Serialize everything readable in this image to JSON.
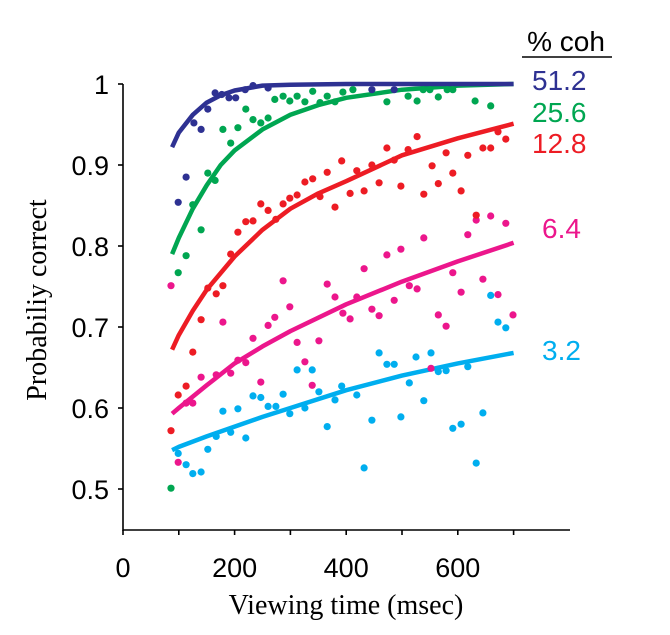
{
  "chart_data": {
    "type": "scatter",
    "title": "",
    "xlabel": "Viewing time (msec)",
    "ylabel": "Probabiliy correct",
    "xlim": [
      0,
      800
    ],
    "ylim": [
      0.45,
      1.0
    ],
    "xticks": [
      0,
      100,
      200,
      300,
      400,
      500,
      600,
      700
    ],
    "xtick_labels": [
      "0",
      "",
      "200",
      "",
      "400",
      "",
      "600",
      ""
    ],
    "yticks": [
      0.5,
      0.6,
      0.7,
      0.8,
      0.9,
      1.0
    ],
    "ytick_labels": [
      "0.5",
      "0.6",
      "0.7",
      "0.8",
      "0.9",
      "1"
    ],
    "grid": false,
    "legend_title": "% coh",
    "legend_placement": "right",
    "series": [
      {
        "name": "51.2",
        "color": "#2e3192",
        "points": [
          [
            99,
            0.854
          ],
          [
            113,
            0.885
          ],
          [
            127,
            0.952
          ],
          [
            140,
            0.944
          ],
          [
            152,
            0.969
          ],
          [
            165,
            0.989
          ],
          [
            177,
            0.987
          ],
          [
            190,
            0.983
          ],
          [
            202,
            0.983
          ],
          [
            219,
            0.993
          ],
          [
            233,
            0.998
          ],
          [
            260,
            0.995
          ],
          [
            446,
            0.993
          ],
          [
            486,
            0.993
          ]
        ],
        "fit": [
          [
            88,
            0.922
          ],
          [
            100,
            0.94
          ],
          [
            125,
            0.962
          ],
          [
            150,
            0.977
          ],
          [
            175,
            0.986
          ],
          [
            200,
            0.992
          ],
          [
            250,
            0.998
          ],
          [
            300,
            0.999
          ],
          [
            400,
            1.0
          ],
          [
            500,
            1.0
          ],
          [
            600,
            1.0
          ],
          [
            700,
            1.0
          ]
        ]
      },
      {
        "name": "25.6",
        "color": "#00a651",
        "points": [
          [
            86,
            0.501
          ],
          [
            99,
            0.767
          ],
          [
            113,
            0.788
          ],
          [
            125,
            0.851
          ],
          [
            140,
            0.82
          ],
          [
            152,
            0.89
          ],
          [
            165,
            0.881
          ],
          [
            179,
            0.944
          ],
          [
            193,
            0.927
          ],
          [
            206,
            0.946
          ],
          [
            220,
            0.969
          ],
          [
            233,
            0.956
          ],
          [
            247,
            0.952
          ],
          [
            260,
            0.958
          ],
          [
            272,
            0.981
          ],
          [
            287,
            0.985
          ],
          [
            299,
            0.979
          ],
          [
            312,
            0.985
          ],
          [
            326,
            0.978
          ],
          [
            340,
            0.991
          ],
          [
            353,
            0.977
          ],
          [
            366,
            0.985
          ],
          [
            380,
            0.978
          ],
          [
            394,
            0.99
          ],
          [
            412,
            0.993
          ],
          [
            473,
            0.978
          ],
          [
            511,
            0.985
          ],
          [
            527,
            0.979
          ],
          [
            538,
            0.993
          ],
          [
            550,
            0.993
          ],
          [
            565,
            0.984
          ],
          [
            581,
            0.993
          ],
          [
            591,
            0.993
          ],
          [
            631,
            0.979
          ],
          [
            659,
            0.973
          ]
        ],
        "fit": [
          [
            88,
            0.79
          ],
          [
            100,
            0.81
          ],
          [
            125,
            0.846
          ],
          [
            150,
            0.875
          ],
          [
            175,
            0.9
          ],
          [
            200,
            0.918
          ],
          [
            250,
            0.944
          ],
          [
            300,
            0.962
          ],
          [
            350,
            0.974
          ],
          [
            400,
            0.983
          ],
          [
            500,
            0.993
          ],
          [
            600,
            0.998
          ],
          [
            700,
            1.0
          ]
        ]
      },
      {
        "name": "12.8",
        "color": "#ed1c24",
        "points": [
          [
            86,
            0.572
          ],
          [
            99,
            0.616
          ],
          [
            113,
            0.627
          ],
          [
            125,
            0.669
          ],
          [
            140,
            0.709
          ],
          [
            152,
            0.748
          ],
          [
            167,
            0.741
          ],
          [
            179,
            0.751
          ],
          [
            193,
            0.79
          ],
          [
            206,
            0.817
          ],
          [
            220,
            0.83
          ],
          [
            233,
            0.831
          ],
          [
            247,
            0.852
          ],
          [
            260,
            0.844
          ],
          [
            274,
            0.833
          ],
          [
            287,
            0.852
          ],
          [
            299,
            0.859
          ],
          [
            312,
            0.863
          ],
          [
            326,
            0.879
          ],
          [
            340,
            0.883
          ],
          [
            353,
            0.861
          ],
          [
            366,
            0.891
          ],
          [
            380,
            0.848
          ],
          [
            392,
            0.905
          ],
          [
            407,
            0.865
          ],
          [
            419,
            0.893
          ],
          [
            432,
            0.868
          ],
          [
            446,
            0.9
          ],
          [
            459,
            0.878
          ],
          [
            473,
            0.921
          ],
          [
            486,
            0.906
          ],
          [
            498,
            0.874
          ],
          [
            511,
            0.919
          ],
          [
            527,
            0.935
          ],
          [
            539,
            0.864
          ],
          [
            554,
            0.899
          ],
          [
            565,
            0.877
          ],
          [
            579,
            0.915
          ],
          [
            591,
            0.89
          ],
          [
            606,
            0.868
          ],
          [
            618,
            0.912
          ],
          [
            633,
            0.838
          ],
          [
            645,
            0.921
          ],
          [
            659,
            0.921
          ],
          [
            672,
            0.941
          ],
          [
            686,
            0.932
          ]
        ],
        "fit": [
          [
            88,
            0.672
          ],
          [
            100,
            0.69
          ],
          [
            125,
            0.72
          ],
          [
            150,
            0.746
          ],
          [
            200,
            0.787
          ],
          [
            250,
            0.82
          ],
          [
            300,
            0.846
          ],
          [
            350,
            0.865
          ],
          [
            400,
            0.88
          ],
          [
            500,
            0.912
          ],
          [
            600,
            0.933
          ],
          [
            700,
            0.951
          ]
        ]
      },
      {
        "name": "6.4",
        "color": "#ec168c",
        "points": [
          [
            86,
            0.751
          ],
          [
            99,
            0.533
          ],
          [
            113,
            0.606
          ],
          [
            125,
            0.606
          ],
          [
            140,
            0.638
          ],
          [
            167,
            0.641
          ],
          [
            179,
            0.706
          ],
          [
            193,
            0.643
          ],
          [
            206,
            0.659
          ],
          [
            220,
            0.656
          ],
          [
            233,
            0.686
          ],
          [
            247,
            0.632
          ],
          [
            260,
            0.702
          ],
          [
            272,
            0.712
          ],
          [
            287,
            0.757
          ],
          [
            299,
            0.725
          ],
          [
            312,
            0.681
          ],
          [
            326,
            0.657
          ],
          [
            339,
            0.628
          ],
          [
            351,
            0.683
          ],
          [
            366,
            0.753
          ],
          [
            380,
            0.737
          ],
          [
            394,
            0.717
          ],
          [
            407,
            0.71
          ],
          [
            419,
            0.737
          ],
          [
            432,
            0.772
          ],
          [
            446,
            0.722
          ],
          [
            459,
            0.714
          ],
          [
            473,
            0.789
          ],
          [
            486,
            0.733
          ],
          [
            498,
            0.796
          ],
          [
            513,
            0.751
          ],
          [
            527,
            0.747
          ],
          [
            539,
            0.81
          ],
          [
            552,
            0.649
          ],
          [
            565,
            0.715
          ],
          [
            579,
            0.701
          ],
          [
            591,
            0.767
          ],
          [
            606,
            0.743
          ],
          [
            618,
            0.814
          ],
          [
            633,
            0.832
          ],
          [
            645,
            0.759
          ],
          [
            659,
            0.837
          ],
          [
            672,
            0.74
          ],
          [
            686,
            0.828
          ],
          [
            699,
            0.715
          ]
        ],
        "fit": [
          [
            88,
            0.593
          ],
          [
            100,
            0.6
          ],
          [
            150,
            0.628
          ],
          [
            200,
            0.655
          ],
          [
            250,
            0.676
          ],
          [
            300,
            0.695
          ],
          [
            400,
            0.728
          ],
          [
            500,
            0.756
          ],
          [
            600,
            0.781
          ],
          [
            700,
            0.804
          ]
        ]
      },
      {
        "name": "3.2",
        "color": "#00aeef",
        "points": [
          [
            99,
            0.544
          ],
          [
            113,
            0.53
          ],
          [
            125,
            0.519
          ],
          [
            140,
            0.521
          ],
          [
            152,
            0.549
          ],
          [
            167,
            0.565
          ],
          [
            179,
            0.596
          ],
          [
            193,
            0.57
          ],
          [
            206,
            0.599
          ],
          [
            220,
            0.563
          ],
          [
            233,
            0.615
          ],
          [
            247,
            0.613
          ],
          [
            260,
            0.602
          ],
          [
            274,
            0.602
          ],
          [
            287,
            0.617
          ],
          [
            299,
            0.593
          ],
          [
            312,
            0.647
          ],
          [
            326,
            0.6
          ],
          [
            339,
            0.647
          ],
          [
            351,
            0.62
          ],
          [
            366,
            0.577
          ],
          [
            380,
            0.61
          ],
          [
            392,
            0.627
          ],
          [
            419,
            0.616
          ],
          [
            432,
            0.526
          ],
          [
            446,
            0.585
          ],
          [
            459,
            0.668
          ],
          [
            473,
            0.654
          ],
          [
            486,
            0.654
          ],
          [
            498,
            0.589
          ],
          [
            513,
            0.631
          ],
          [
            525,
            0.663
          ],
          [
            539,
            0.609
          ],
          [
            552,
            0.668
          ],
          [
            565,
            0.645
          ],
          [
            579,
            0.646
          ],
          [
            591,
            0.575
          ],
          [
            606,
            0.58
          ],
          [
            618,
            0.651
          ],
          [
            633,
            0.532
          ],
          [
            645,
            0.594
          ],
          [
            659,
            0.739
          ],
          [
            672,
            0.706
          ],
          [
            686,
            0.699
          ]
        ],
        "fit": [
          [
            88,
            0.548
          ],
          [
            100,
            0.552
          ],
          [
            150,
            0.565
          ],
          [
            200,
            0.577
          ],
          [
            250,
            0.589
          ],
          [
            300,
            0.6
          ],
          [
            400,
            0.622
          ],
          [
            500,
            0.64
          ],
          [
            600,
            0.655
          ],
          [
            700,
            0.668
          ]
        ]
      }
    ]
  }
}
